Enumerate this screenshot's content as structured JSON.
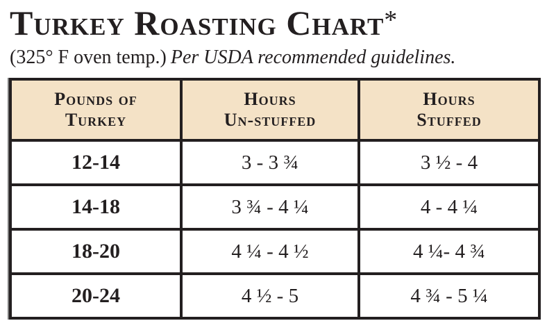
{
  "header": {
    "title": "Turkey Roasting Chart",
    "title_mark": "*",
    "subtitle_plain": "(325° F oven temp.)",
    "subtitle_italic": "Per USDA recommended guidelines."
  },
  "table": {
    "columns": [
      {
        "line1": "Pounds of",
        "line2": "Turkey"
      },
      {
        "line1": "Hours",
        "line2": "Un-stuffed"
      },
      {
        "line1": "Hours",
        "line2": "Stuffed"
      }
    ],
    "rows": [
      {
        "pounds": "12-14",
        "unstuffed": "3 - 3 ¾",
        "stuffed": "3 ½ - 4"
      },
      {
        "pounds": "14-18",
        "unstuffed": "3 ¾ - 4 ¼",
        "stuffed": "4 - 4 ¼"
      },
      {
        "pounds": "18-20",
        "unstuffed": "4 ¼ - 4 ½",
        "stuffed": "4 ¼- 4 ¾"
      },
      {
        "pounds": "20-24",
        "unstuffed": "4 ½ - 5",
        "stuffed": "4 ¾ - 5 ¼"
      }
    ]
  },
  "colors": {
    "header_fill": "#f4e2c6",
    "border": "#231f20",
    "text": "#231f20",
    "background": "#ffffff"
  }
}
